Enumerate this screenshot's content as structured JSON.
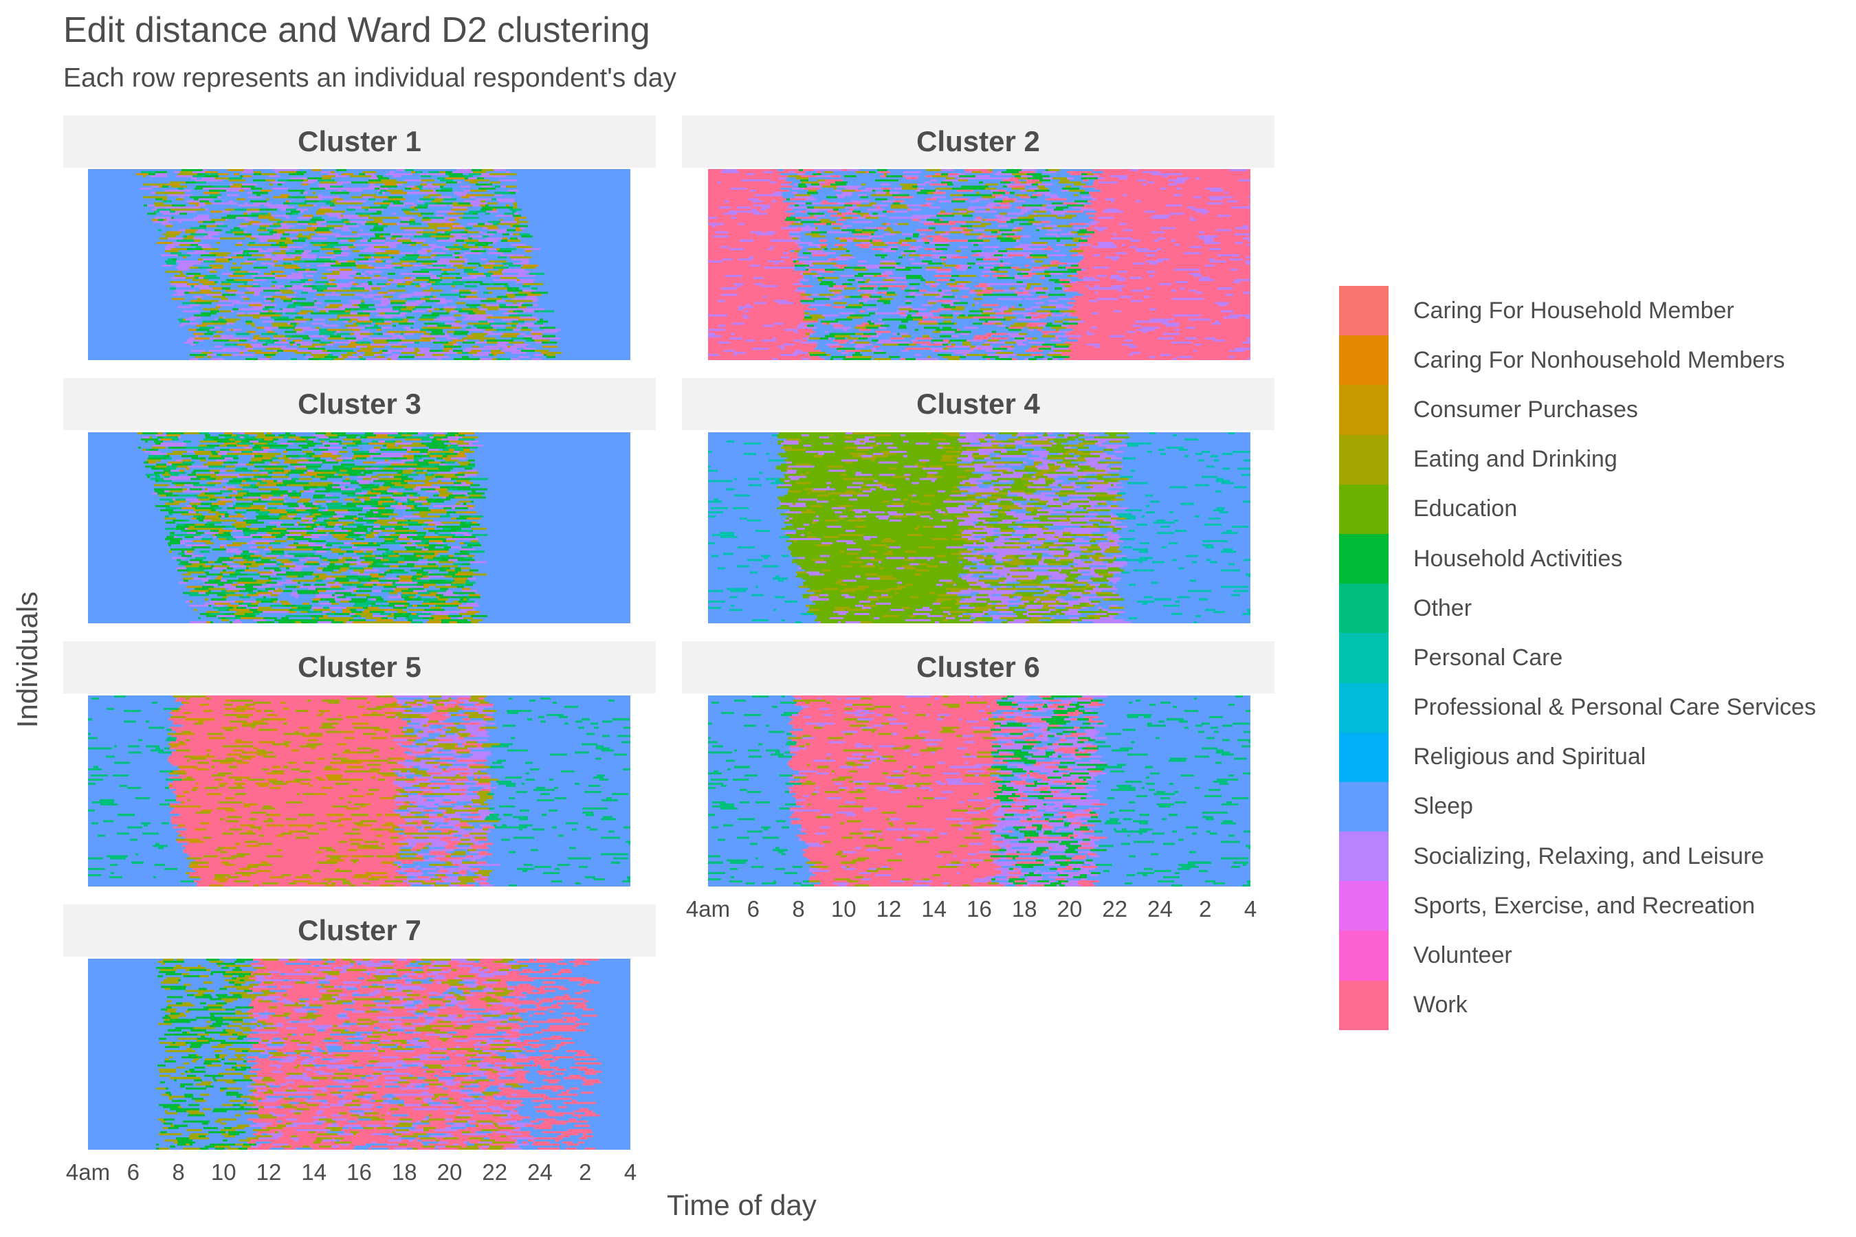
{
  "chart_data": {
    "type": "heatmap",
    "title": "Edit distance and Ward D2 clustering",
    "subtitle": "Each row represents an individual respondent's day",
    "xlabel": "Time of day",
    "ylabel": "Individuals",
    "x_ticks": [
      "4am",
      "6",
      "8",
      "10",
      "12",
      "14",
      "16",
      "18",
      "20",
      "22",
      "24",
      "2",
      "4"
    ],
    "facets": [
      {
        "name": "Cluster 1",
        "dominant": [
          "Sleep",
          "Socializing, Relaxing, and Leisure",
          "Eating and Drinking",
          "Household Activities"
        ]
      },
      {
        "name": "Cluster 2",
        "dominant": [
          "Work",
          "Sleep",
          "Socializing, Relaxing, and Leisure",
          "Household Activities"
        ]
      },
      {
        "name": "Cluster 3",
        "dominant": [
          "Sleep",
          "Household Activities",
          "Eating and Drinking",
          "Socializing, Relaxing, and Leisure"
        ]
      },
      {
        "name": "Cluster 4",
        "dominant": [
          "Sleep",
          "Education",
          "Socializing, Relaxing, and Leisure"
        ]
      },
      {
        "name": "Cluster 5",
        "dominant": [
          "Sleep",
          "Work",
          "Eating and Drinking",
          "Socializing, Relaxing, and Leisure"
        ]
      },
      {
        "name": "Cluster 6",
        "dominant": [
          "Sleep",
          "Work",
          "Socializing, Relaxing, and Leisure"
        ]
      },
      {
        "name": "Cluster 7",
        "dominant": [
          "Sleep",
          "Work",
          "Socializing, Relaxing, and Leisure",
          "Eating and Drinking"
        ]
      }
    ],
    "legend": [
      {
        "label": "Caring For Household Member",
        "color": "#F8766D"
      },
      {
        "label": "Caring For Nonhousehold Members",
        "color": "#E58700"
      },
      {
        "label": "Consumer Purchases",
        "color": "#C99800"
      },
      {
        "label": "Eating and Drinking",
        "color": "#A3A500"
      },
      {
        "label": "Education",
        "color": "#6BB100"
      },
      {
        "label": "Household Activities",
        "color": "#00BA38"
      },
      {
        "label": "Other",
        "color": "#00BF7D"
      },
      {
        "label": "Personal Care",
        "color": "#00C0AF"
      },
      {
        "label": "Professional & Personal Care Services",
        "color": "#00BCD8"
      },
      {
        "label": "Religious and Spiritual",
        "color": "#00B0F6"
      },
      {
        "label": "Sleep",
        "color": "#619CFF"
      },
      {
        "label": "Socializing, Relaxing, and Leisure",
        "color": "#B983FF"
      },
      {
        "label": "Sports, Exercise, and Recreation",
        "color": "#E76BF3"
      },
      {
        "label": "Volunteer",
        "color": "#FD61D1"
      },
      {
        "label": "Work",
        "color": "#FF6C91"
      }
    ],
    "legend_position": "right"
  }
}
